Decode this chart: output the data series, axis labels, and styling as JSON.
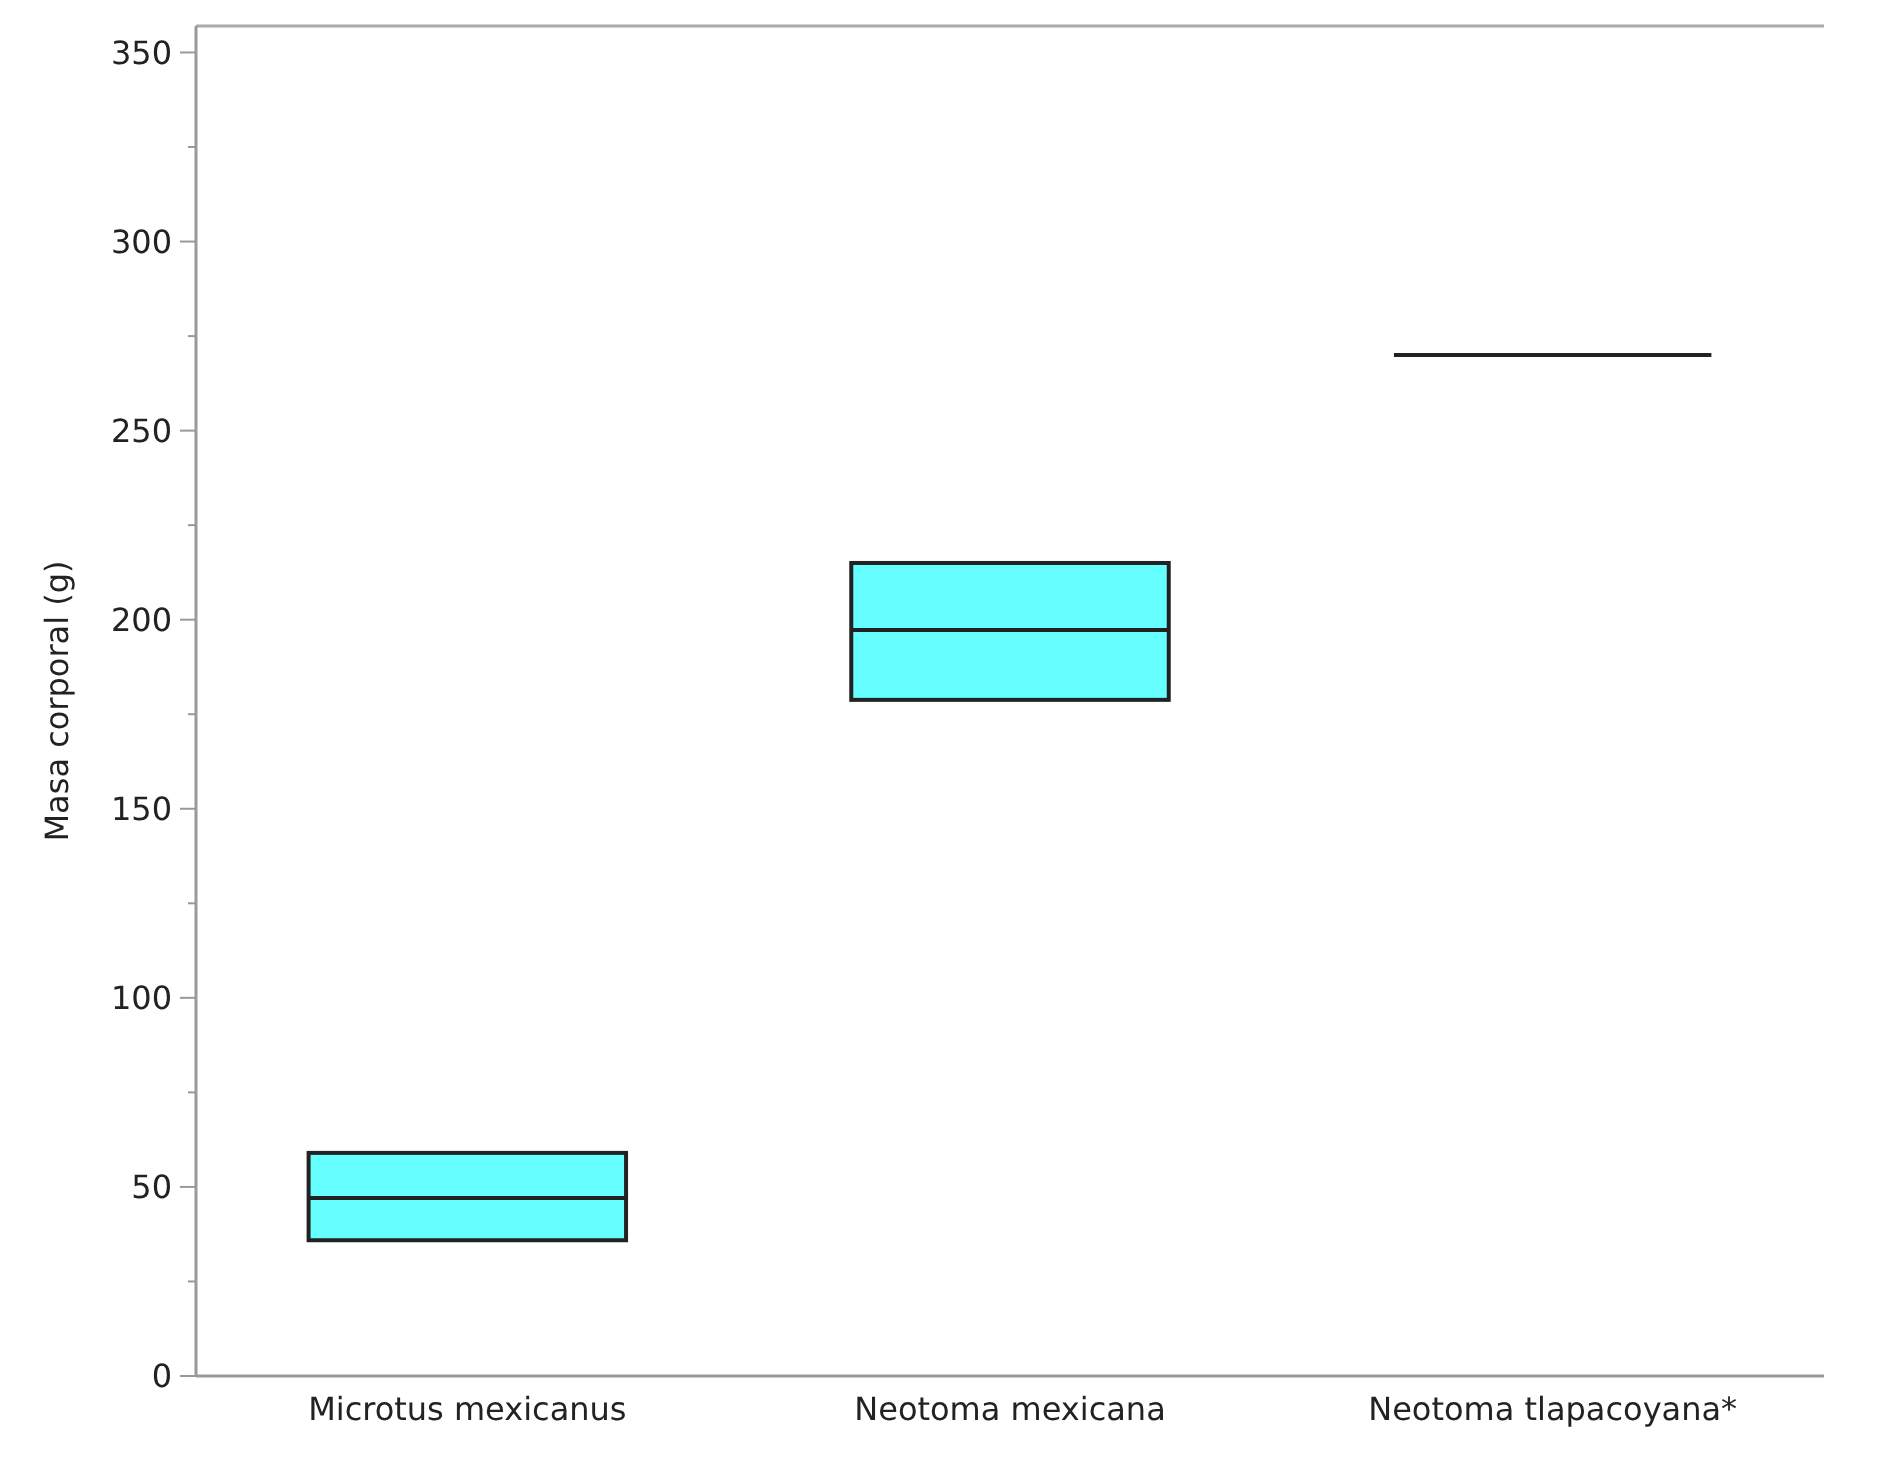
{
  "chart_data": {
    "type": "box",
    "ylabel": "Masa corporal (g)",
    "categories": [
      "Microtus mexicanus",
      "Neotoma mexicana",
      "Neotoma tlapacoyana*"
    ],
    "colors": [
      "#66ffff",
      "#66ffff",
      "#222222"
    ],
    "boxes": [
      {
        "low": 35.9,
        "q1": 35.9,
        "median": 47.1,
        "q3": 59,
        "high": 59
      },
      {
        "low": 178.8,
        "q1": 178.8,
        "median": 197.3,
        "q3": 215,
        "high": 215
      },
      {
        "low": 270,
        "q1": 270,
        "median": 270,
        "q3": 270,
        "high": 270
      }
    ],
    "ylim": [
      0,
      357
    ],
    "yticks": [
      0,
      {
        "value": 25,
        "label": null
      },
      50,
      {
        "value": 75,
        "label": null
      },
      100,
      {
        "value": 125,
        "label": null
      },
      150,
      {
        "value": 175,
        "label": null
      },
      200,
      {
        "value": 225,
        "label": null
      },
      250,
      {
        "value": 275,
        "label": null
      },
      300,
      {
        "value": 325,
        "label": null
      },
      350
    ],
    "grid": false
  }
}
